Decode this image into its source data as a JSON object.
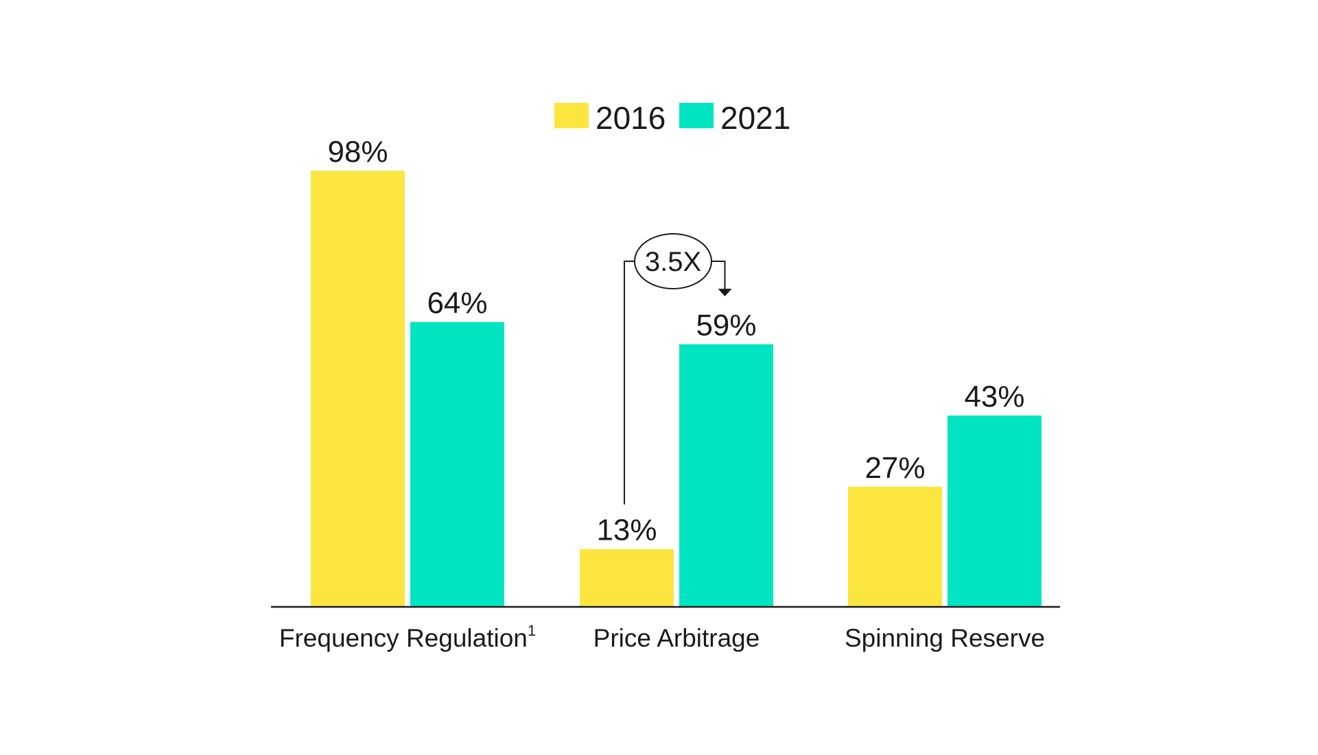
{
  "colors": {
    "y2016": "#fde53f",
    "y2021": "#00e5c1",
    "text": "#1a1a1a",
    "axis": "#1a1a1a"
  },
  "legend": {
    "items": [
      "2016",
      "2021"
    ]
  },
  "chart_data": {
    "type": "bar",
    "title": "",
    "xlabel": "",
    "ylabel": "",
    "categories": [
      "Frequency Regulation",
      "Price Arbitrage",
      "Spinning Reserve"
    ],
    "category_footnotes": [
      "1",
      "",
      ""
    ],
    "series": [
      {
        "name": "2016",
        "values": [
          98,
          13,
          27
        ],
        "labels": [
          "98%",
          "13%",
          "27%"
        ]
      },
      {
        "name": "2021",
        "values": [
          64,
          59,
          43
        ],
        "labels": [
          "64%",
          "59%",
          "43%"
        ]
      }
    ],
    "ylim": [
      0,
      100
    ],
    "grid": false,
    "legend_position": "top-center",
    "annotations": [
      {
        "text": "3.5X",
        "category": "Price Arbitrage",
        "from_series": "2016",
        "to_series": "2021"
      }
    ]
  }
}
